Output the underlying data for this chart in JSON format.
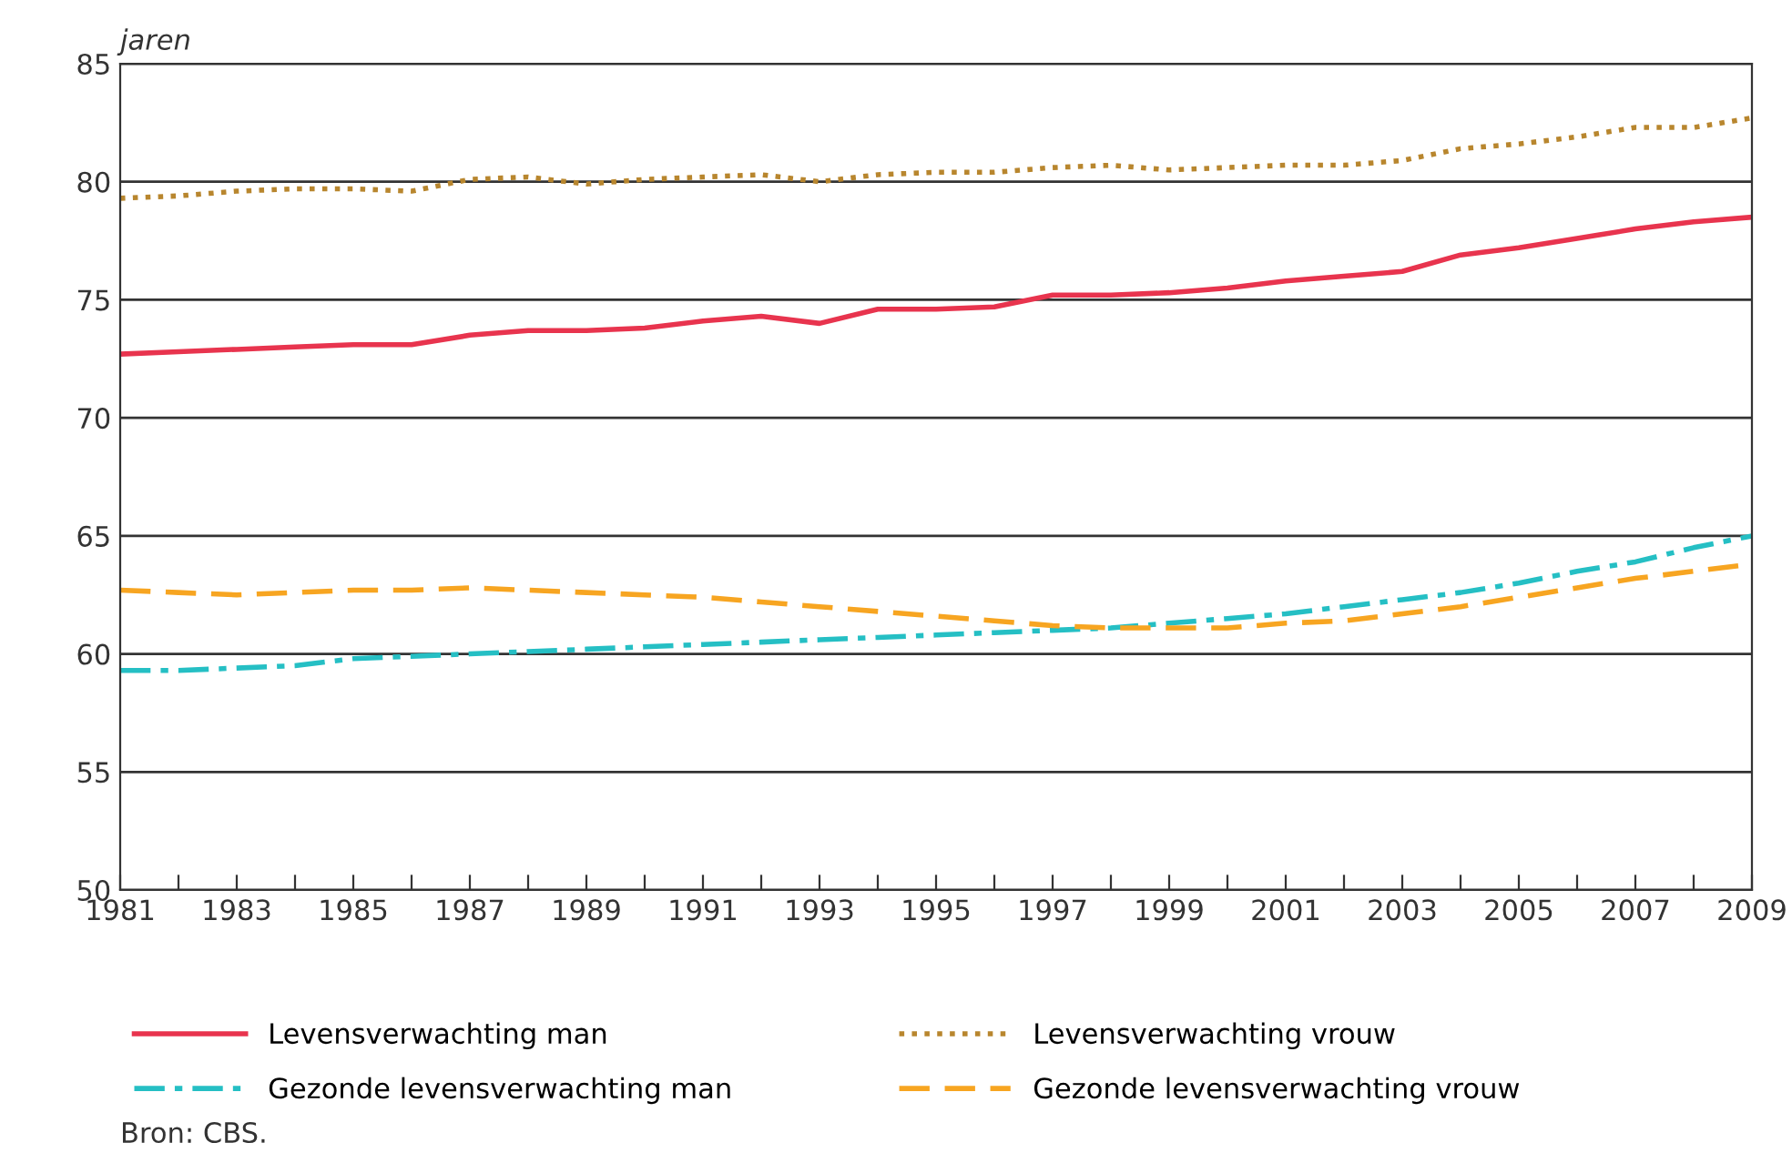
{
  "chart_data": {
    "type": "line",
    "ylabel": "jaren",
    "x": [
      1981,
      1982,
      1983,
      1984,
      1985,
      1986,
      1987,
      1988,
      1989,
      1990,
      1991,
      1992,
      1993,
      1994,
      1995,
      1996,
      1997,
      1998,
      1999,
      2000,
      2001,
      2002,
      2003,
      2004,
      2005,
      2006,
      2007,
      2008,
      2009
    ],
    "series": [
      {
        "name": "Levensverwachting man",
        "color": "#e8344e",
        "line_style": "solid",
        "values": [
          72.7,
          72.8,
          72.9,
          73.0,
          73.1,
          73.1,
          73.5,
          73.7,
          73.7,
          73.8,
          74.1,
          74.3,
          74.0,
          74.6,
          74.6,
          74.7,
          75.2,
          75.2,
          75.3,
          75.5,
          75.8,
          76.0,
          76.2,
          76.9,
          77.2,
          77.6,
          78.0,
          78.3,
          78.5
        ]
      },
      {
        "name": "Gezonde levensverwachting man",
        "color": "#25bfc4",
        "line_style": "dashdot",
        "values": [
          59.3,
          59.3,
          59.4,
          59.5,
          59.8,
          59.9,
          60.0,
          60.1,
          60.2,
          60.3,
          60.4,
          60.5,
          60.6,
          60.7,
          60.8,
          60.9,
          61.0,
          61.1,
          61.3,
          61.5,
          61.7,
          62.0,
          62.3,
          62.6,
          63.0,
          63.5,
          63.9,
          64.5,
          65.0
        ]
      },
      {
        "name": "Levensverwachting vrouw",
        "color": "#b8862e",
        "line_style": "dotted",
        "values": [
          79.3,
          79.4,
          79.6,
          79.7,
          79.7,
          79.6,
          80.1,
          80.2,
          79.9,
          80.1,
          80.2,
          80.3,
          80.0,
          80.3,
          80.4,
          80.4,
          80.6,
          80.7,
          80.5,
          80.6,
          80.7,
          80.7,
          80.9,
          81.4,
          81.6,
          81.9,
          82.3,
          82.3,
          82.7
        ]
      },
      {
        "name": "Gezonde levensverwachting vrouw",
        "color": "#f7a521",
        "line_style": "dashed",
        "values": [
          62.7,
          62.6,
          62.5,
          62.6,
          62.7,
          62.7,
          62.8,
          62.7,
          62.6,
          62.5,
          62.4,
          62.2,
          62.0,
          61.8,
          61.6,
          61.4,
          61.2,
          61.1,
          61.1,
          61.1,
          61.3,
          61.4,
          61.7,
          62.0,
          62.4,
          62.8,
          63.2,
          63.5,
          63.8
        ]
      }
    ],
    "xlim": [
      1981,
      2009
    ],
    "xticks": [
      1981,
      {
        "value": 1982,
        "label": null
      },
      1983,
      {
        "value": 1984,
        "label": null
      },
      1985,
      {
        "value": 1986,
        "label": null
      },
      1987,
      {
        "value": 1988,
        "label": null
      },
      1989,
      {
        "value": 1990,
        "label": null
      },
      1991,
      {
        "value": 1992,
        "label": null
      },
      1993,
      {
        "value": 1994,
        "label": null
      },
      1995,
      {
        "value": 1996,
        "label": null
      },
      1997,
      {
        "value": 1998,
        "label": null
      },
      1999,
      {
        "value": 2000,
        "label": null
      },
      2001,
      {
        "value": 2002,
        "label": null
      },
      2003,
      {
        "value": 2004,
        "label": null
      },
      2005,
      {
        "value": 2006,
        "label": null
      },
      2007,
      {
        "value": 2008,
        "label": null
      },
      2009
    ],
    "ylim": [
      50,
      85
    ],
    "yticks": [
      50,
      55,
      60,
      65,
      70,
      75,
      80,
      85
    ],
    "grid": "y",
    "legend": "bottom",
    "annotations": [
      "Bron: CBS."
    ]
  }
}
